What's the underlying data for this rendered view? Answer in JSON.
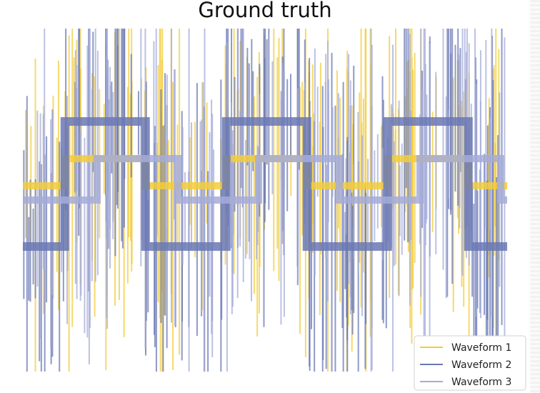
{
  "chart_data": {
    "type": "line",
    "title": "Ground truth",
    "xlabel": "",
    "ylabel": "",
    "axes_visible": false,
    "grid": false,
    "legend_position": "bottom-right",
    "xlim": [
      0,
      600
    ],
    "ylim": [
      -2.5,
      2.5
    ],
    "noise_outliers": true,
    "series": [
      {
        "name": "Waveform 1",
        "color": "#f2cc3c",
        "shape": "sine-like",
        "steps": [
          {
            "x0": 0,
            "x1": 52,
            "y": 0.2
          },
          {
            "x0": 52,
            "x1": 100,
            "y": 0.58
          },
          {
            "x0": 100,
            "x1": 152,
            "y": 0.58
          },
          {
            "x0": 152,
            "x1": 200,
            "y": 0.2
          },
          {
            "x0": 200,
            "x1": 252,
            "y": 0.2
          },
          {
            "x0": 252,
            "x1": 300,
            "y": 0.58
          },
          {
            "x0": 300,
            "x1": 352,
            "y": 0.58
          },
          {
            "x0": 352,
            "x1": 400,
            "y": 0.2
          },
          {
            "x0": 400,
            "x1": 452,
            "y": 0.2
          },
          {
            "x0": 452,
            "x1": 500,
            "y": 0.58
          },
          {
            "x0": 500,
            "x1": 552,
            "y": 0.58
          },
          {
            "x0": 552,
            "x1": 600,
            "y": 0.2
          }
        ]
      },
      {
        "name": "Waveform 2",
        "color": "#6a78b4",
        "shape": "square",
        "steps": [
          {
            "x0": 0,
            "x1": 52,
            "y": -0.65
          },
          {
            "x0": 52,
            "x1": 152,
            "y": 1.1
          },
          {
            "x0": 152,
            "x1": 252,
            "y": -0.65
          },
          {
            "x0": 252,
            "x1": 352,
            "y": 1.1
          },
          {
            "x0": 352,
            "x1": 452,
            "y": -0.65
          },
          {
            "x0": 452,
            "x1": 552,
            "y": 1.1
          },
          {
            "x0": 552,
            "x1": 600,
            "y": -0.65
          }
        ]
      },
      {
        "name": "Waveform 3",
        "color": "#a5acd8",
        "shape": "sawtooth",
        "steps": [
          {
            "x0": 0,
            "x1": 92,
            "y": 0.0
          },
          {
            "x0": 92,
            "x1": 192,
            "y": 0.58
          },
          {
            "x0": 192,
            "x1": 292,
            "y": 0.0
          },
          {
            "x0": 292,
            "x1": 392,
            "y": 0.58
          },
          {
            "x0": 392,
            "x1": 492,
            "y": 0.0
          },
          {
            "x0": 492,
            "x1": 592,
            "y": 0.58
          },
          {
            "x0": 592,
            "x1": 600,
            "y": 0.0
          }
        ]
      }
    ]
  }
}
